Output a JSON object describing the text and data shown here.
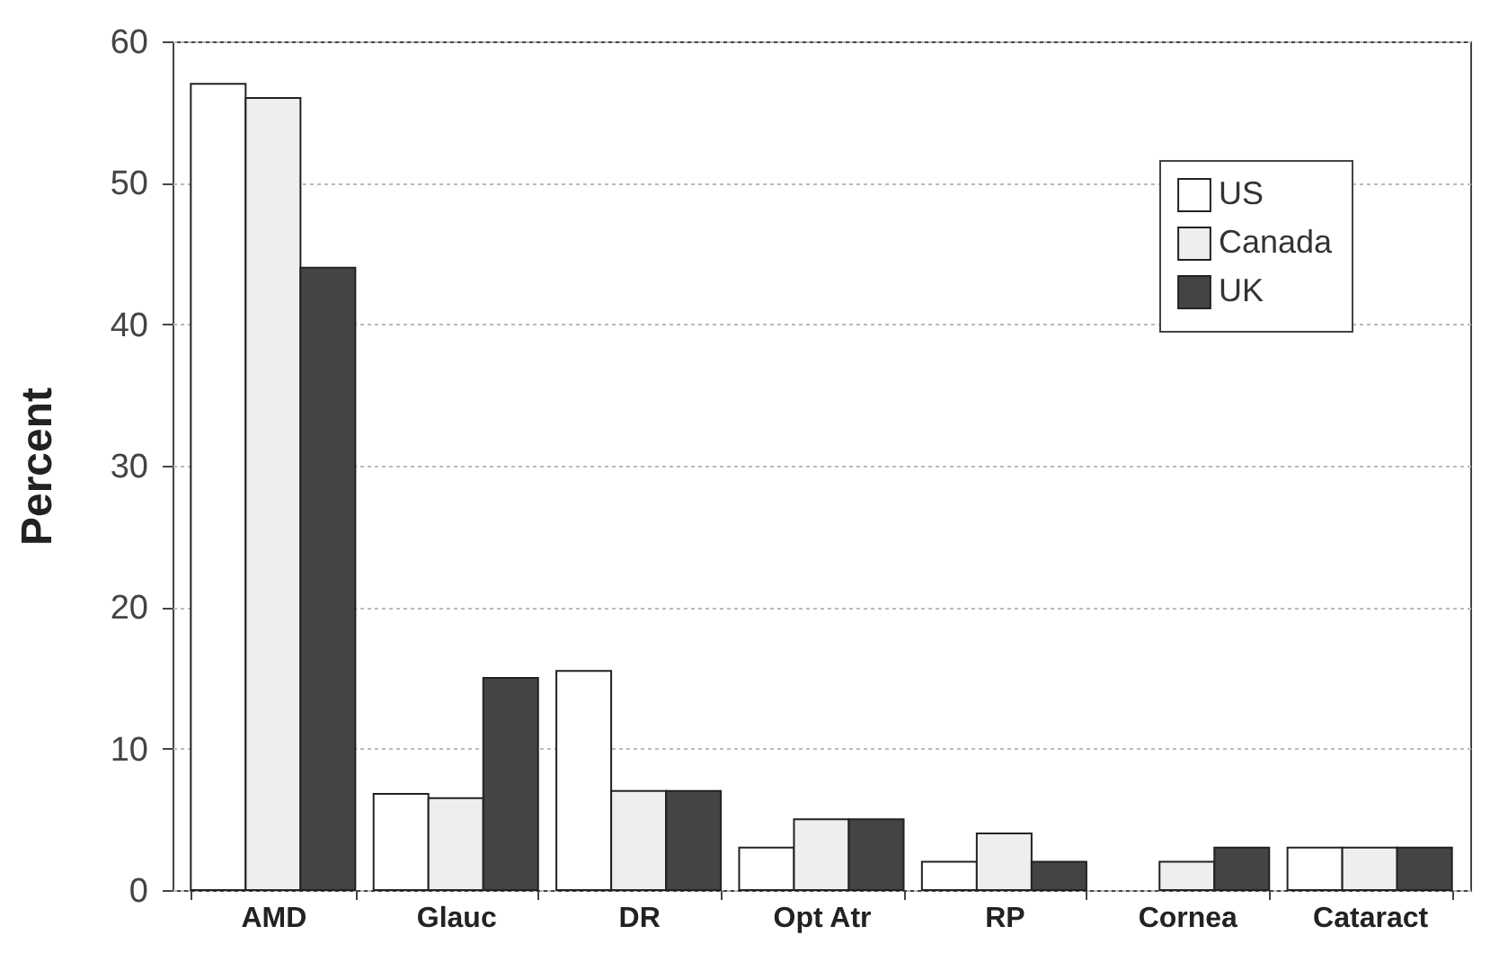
{
  "chart_data": {
    "type": "bar",
    "ylabel": "Percent",
    "categories": [
      "AMD",
      "Glauc",
      "DR",
      "Opt Atr",
      "RP",
      "Cornea",
      "Cataract"
    ],
    "series": [
      {
        "name": "US",
        "color": "#ffffff",
        "values": [
          57,
          6.8,
          15.5,
          3,
          2,
          null,
          3
        ]
      },
      {
        "name": "Canada",
        "color": "#eeeeee",
        "values": [
          56,
          6.5,
          7,
          5,
          4,
          2,
          3
        ]
      },
      {
        "name": "UK",
        "color": "#444444",
        "values": [
          44,
          15,
          7,
          5,
          2,
          3,
          3
        ]
      }
    ],
    "ylim": [
      0,
      60
    ],
    "yticks": [
      0,
      10,
      20,
      30,
      40,
      50,
      60
    ],
    "grid": "y",
    "legend": "top right"
  }
}
